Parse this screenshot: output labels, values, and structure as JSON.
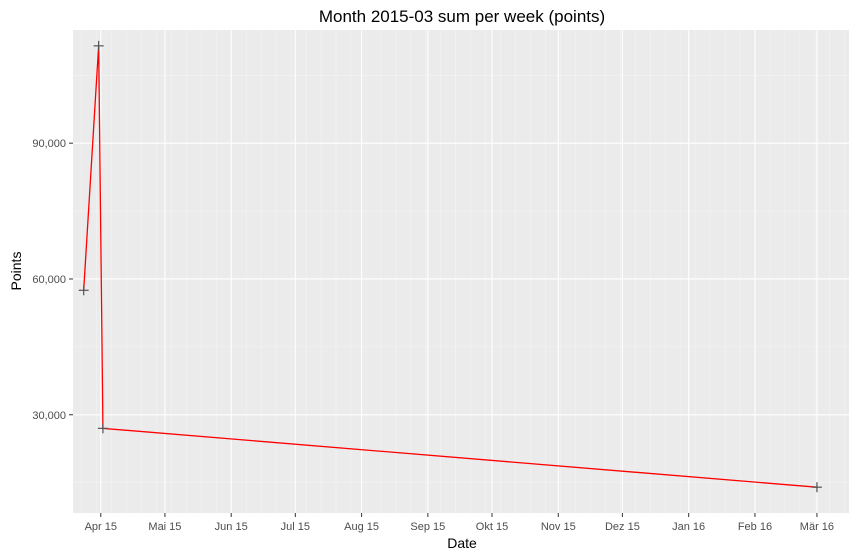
{
  "chart_data": {
    "type": "line",
    "title": "Month 2015-03 sum per week (points)",
    "xlabel": "Date",
    "ylabel": "Points",
    "x_ticks": [
      {
        "date": "2015-04-01",
        "label": "Apr 15"
      },
      {
        "date": "2015-05-01",
        "label": "Mai 15"
      },
      {
        "date": "2015-06-01",
        "label": "Jun 15"
      },
      {
        "date": "2015-07-01",
        "label": "Jul 15"
      },
      {
        "date": "2015-08-01",
        "label": "Aug 15"
      },
      {
        "date": "2015-09-01",
        "label": "Sep 15"
      },
      {
        "date": "2015-10-01",
        "label": "Okt 15"
      },
      {
        "date": "2015-11-01",
        "label": "Nov 15"
      },
      {
        "date": "2015-12-01",
        "label": "Dez 15"
      },
      {
        "date": "2016-01-01",
        "label": "Jan 16"
      },
      {
        "date": "2016-02-01",
        "label": "Feb 16"
      },
      {
        "date": "2016-03-01",
        "label": "Mär 16"
      }
    ],
    "y_ticks": [
      {
        "value": 30000,
        "label": "30,000"
      },
      {
        "value": 60000,
        "label": "60,000"
      },
      {
        "value": 90000,
        "label": "90,000"
      }
    ],
    "xlim": [
      "2015-03-19",
      "2016-03-16"
    ],
    "ylim": [
      8300,
      115000
    ],
    "grid": true,
    "series": [
      {
        "points": [
          {
            "x": "2015-03-24",
            "y": 57500
          },
          {
            "x": "2015-03-31",
            "y": 111500
          },
          {
            "x": "2015-04-02",
            "y": 27000
          },
          {
            "x": "2016-03-01",
            "y": 14000
          }
        ],
        "line_color": "#ff0000",
        "marker_color": "#555555",
        "marker": "plus"
      }
    ]
  }
}
